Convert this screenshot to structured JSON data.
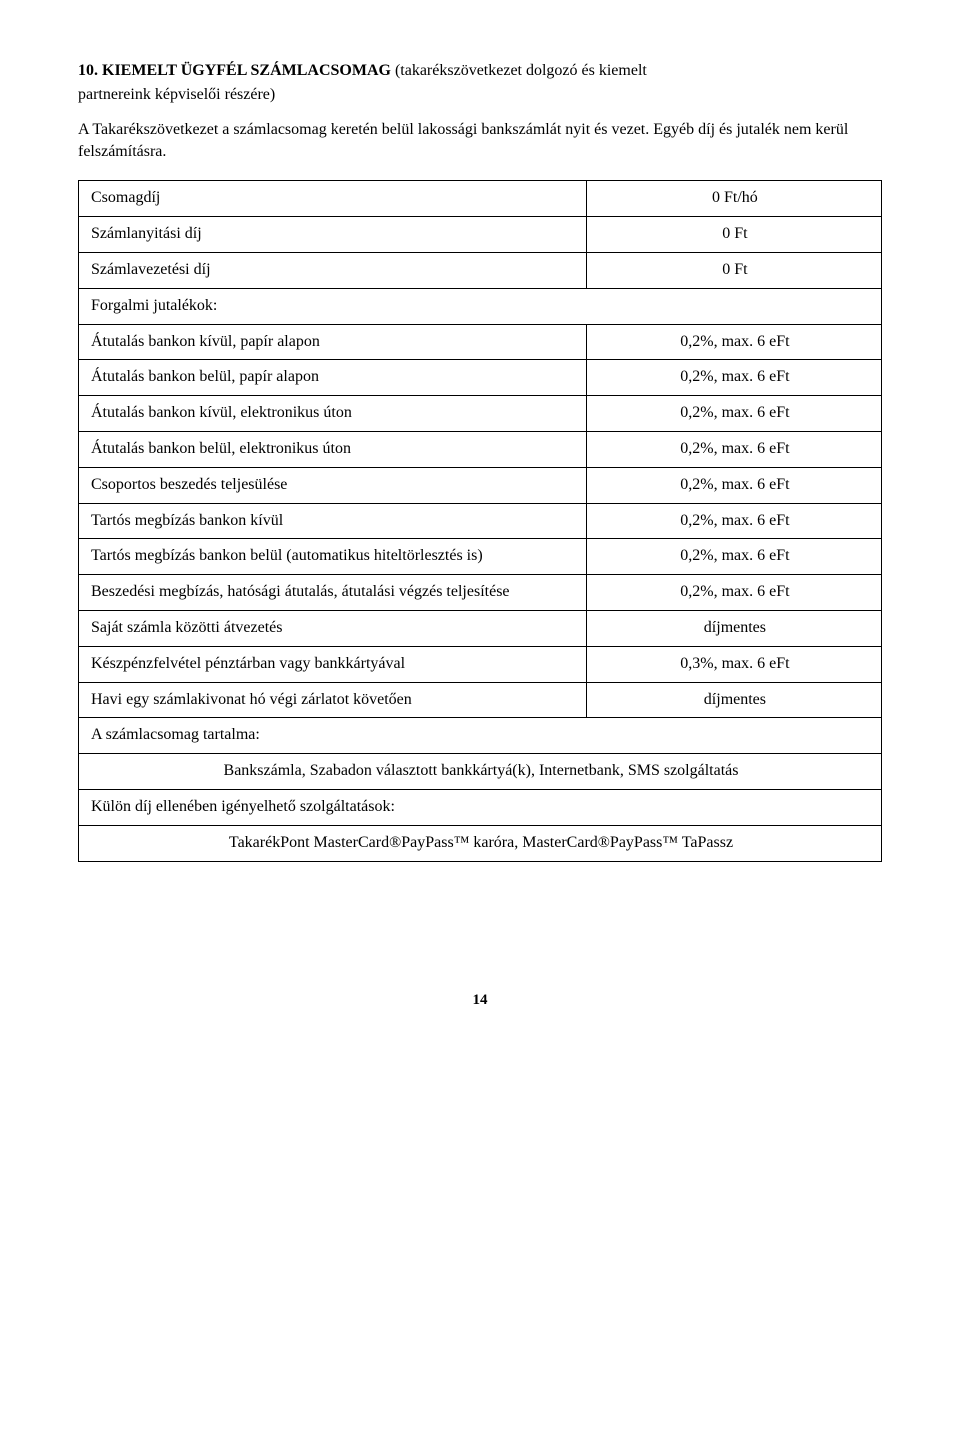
{
  "heading": {
    "bold_part": "10. KIEMELT ÜGYFÉL SZÁMLACSOMAG ",
    "rest_line1": "(takarékszövetkezet dolgozó és kiemelt",
    "rest_line2": "partnereink képviselői részére)"
  },
  "intro": "A Takarékszövetkezet a számlacsomag keretén belül lakossági bankszámlát nyit és vezet. Egyéb díj és jutalék nem kerül felszámításra.",
  "rows": {
    "csomagdij_label": "Csomagdíj",
    "csomagdij_value": "0 Ft/hó",
    "nyitasi_label": "Számlanyitási díj",
    "nyitasi_value": "0 Ft",
    "vezetesi_label": "Számlavezetési díj",
    "vezetesi_value": "0 Ft",
    "jutalekok_label": "Forgalmi jutalékok:",
    "atut_kivul_papir_label": "Átutalás bankon kívül, papír alapon",
    "atut_kivul_papir_value": "0,2%, max. 6 eFt",
    "atut_belul_papir_label": "Átutalás bankon belül, papír alapon",
    "atut_belul_papir_value": "0,2%, max. 6 eFt",
    "atut_kivul_elek_label": "Átutalás bankon kívül, elektronikus úton",
    "atut_kivul_elek_value": "0,2%, max. 6 eFt",
    "atut_belul_elek_label": "Átutalás bankon belül, elektronikus úton",
    "atut_belul_elek_value": "0,2%, max. 6 eFt",
    "csoportos_label": "Csoportos beszedés teljesülése",
    "csoportos_value": "0,2%, max. 6 eFt",
    "tartos_kivul_label": "Tartós megbízás bankon kívül",
    "tartos_kivul_value": "0,2%, max. 6 eFt",
    "tartos_belul_label": "Tartós megbízás bankon belül (automatikus hiteltörlesztés is)",
    "tartos_belul_value": "0,2%, max. 6 eFt",
    "beszedesi_label": "Beszedési megbízás, hatósági átutalás, átutalási végzés teljesítése",
    "beszedesi_value": "0,2%, max. 6 eFt",
    "sajat_label": "Saját számla közötti átvezetés",
    "sajat_value": "díjmentes",
    "keszpenz_label": "Készpénzfelvétel pénztárban vagy bankkártyával",
    "keszpenz_value": "0,3%, max. 6 eFt",
    "havi_label": "Havi egy számlakivonat hó végi zárlatot követően",
    "havi_value": "díjmentes",
    "tartalma_label": "A számlacsomag tartalma:",
    "tartalma_text": "Bankszámla, Szabadon választott bankkártyá(k), Internetbank, SMS szolgáltatás",
    "kulon_label": "Külön díj ellenében igényelhető szolgáltatások:",
    "kulon_text": "TakarékPont MasterCard®PayPass™ karóra, MasterCard®PayPass™ TaPassz"
  },
  "page_number": "14"
}
